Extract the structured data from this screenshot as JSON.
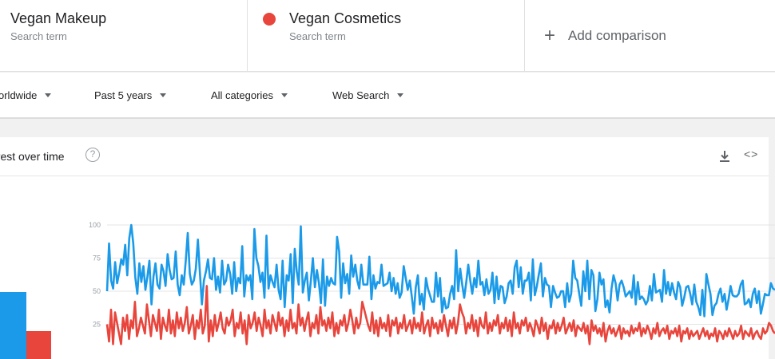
{
  "search_terms": [
    {
      "title": "Vegan Makeup",
      "subtitle": "Search term",
      "color": "#1a9ae8"
    },
    {
      "title": "Vegan Cosmetics",
      "subtitle": "Search term",
      "color": "#e8453c"
    }
  ],
  "add_comparison": {
    "icon": "plus-icon",
    "label": "Add comparison"
  },
  "filters": [
    {
      "label": "orldwide"
    },
    {
      "label": "Past 5 years"
    },
    {
      "label": "All categories"
    },
    {
      "label": "Web Search"
    }
  ],
  "card": {
    "title": "erest over time",
    "help_glyph": "?",
    "download_icon": "download-icon",
    "embed_icon": "embed-code-icon",
    "embed_glyph": "<>"
  },
  "averages": [
    {
      "name": "Vegan Makeup",
      "value": 55,
      "color": "#1a9ae8"
    },
    {
      "name": "Vegan Cosmetics",
      "value": 23,
      "color": "#e8453c"
    }
  ],
  "chart_data": {
    "type": "line",
    "ylim": [
      0,
      100
    ],
    "yticks": [
      "100",
      "75",
      "50",
      "25"
    ],
    "grid": true,
    "series": [
      {
        "name": "Vegan Makeup",
        "color": "#1a9ae8",
        "values": [
          50,
          86,
          58,
          52,
          72,
          56,
          64,
          74,
          70,
          85,
          62,
          90,
          100,
          86,
          60,
          48,
          71,
          57,
          69,
          51,
          61,
          73,
          40,
          61,
          71,
          55,
          52,
          70,
          65,
          54,
          78,
          66,
          59,
          60,
          80,
          55,
          47,
          62,
          55,
          73,
          94,
          63,
          55,
          58,
          67,
          89,
          64,
          40,
          58,
          65,
          74,
          60,
          59,
          75,
          51,
          61,
          49,
          73,
          55,
          58,
          70,
          63,
          48,
          72,
          50,
          60,
          56,
          84,
          46,
          62,
          58,
          62,
          44,
          97,
          75,
          69,
          57,
          64,
          45,
          92,
          52,
          62,
          57,
          53,
          70,
          51,
          44,
          73,
          38,
          62,
          58,
          78,
          41,
          82,
          65,
          55,
          99,
          49,
          58,
          64,
          43,
          58,
          75,
          53,
          66,
          56,
          41,
          74,
          39,
          61,
          54,
          60,
          56,
          55,
          91,
          80,
          45,
          71,
          56,
          63,
          48,
          77,
          61,
          70,
          58,
          52,
          70,
          55,
          55,
          55,
          76,
          44,
          62,
          52,
          57,
          56,
          70,
          54,
          55,
          56,
          64,
          50,
          60,
          48,
          56,
          45,
          49,
          69,
          60,
          51,
          58,
          46,
          33,
          53,
          62,
          40,
          48,
          36,
          60,
          52,
          47,
          42,
          42,
          64,
          46,
          60,
          34,
          45,
          37,
          38,
          48,
          54,
          44,
          81,
          50,
          67,
          55,
          45,
          57,
          70,
          58,
          48,
          60,
          53,
          73,
          55,
          57,
          47,
          59,
          48,
          51,
          64,
          41,
          61,
          44,
          54,
          53,
          41,
          46,
          56,
          58,
          48,
          68,
          73,
          53,
          68,
          48,
          58,
          58,
          64,
          43,
          74,
          47,
          54,
          63,
          71,
          46,
          60,
          55,
          54,
          38,
          54,
          49,
          45,
          46,
          50,
          50,
          38,
          56,
          42,
          48,
          73,
          60,
          58,
          48,
          39,
          65,
          50,
          73,
          44,
          66,
          62,
          35,
          44,
          64,
          55,
          59,
          38,
          43,
          34,
          52,
          62,
          56,
          43,
          55,
          58,
          53,
          46,
          48,
          50,
          45,
          62,
          40,
          57,
          44,
          46,
          44,
          40,
          43,
          54,
          43,
          63,
          49,
          50,
          51,
          42,
          66,
          48,
          57,
          47,
          56,
          49,
          44,
          57,
          53,
          39,
          45,
          53,
          54,
          48,
          40,
          55,
          42,
          38,
          32,
          51,
          31,
          63,
          55,
          48,
          32,
          39,
          41,
          48,
          52,
          42,
          48,
          36,
          44,
          54,
          47,
          46,
          46,
          48,
          55,
          58,
          40,
          41,
          44,
          38,
          48,
          52,
          41,
          50,
          33,
          40,
          48,
          47,
          47,
          56,
          52,
          51
        ]
      },
      {
        "name": "Vegan Cosmetics",
        "color": "#e8453c",
        "values": [
          25,
          12,
          36,
          10,
          34,
          26,
          18,
          10,
          30,
          20,
          32,
          14,
          28,
          22,
          42,
          16,
          22,
          30,
          24,
          18,
          40,
          28,
          16,
          32,
          26,
          20,
          36,
          14,
          30,
          24,
          20,
          36,
          18,
          28,
          16,
          34,
          22,
          30,
          20,
          26,
          38,
          18,
          24,
          32,
          14,
          28,
          22,
          36,
          18,
          24,
          54,
          12,
          28,
          16,
          32,
          20,
          26,
          34,
          22,
          18,
          30,
          24,
          28,
          36,
          16,
          26,
          22,
          34,
          18,
          28,
          10,
          32,
          22,
          26,
          34,
          20,
          30,
          24,
          16,
          36,
          22,
          28,
          18,
          32,
          26,
          20,
          34,
          24,
          30,
          16,
          28,
          20,
          36,
          22,
          26,
          18,
          40,
          24,
          30,
          20,
          28,
          34,
          16,
          26,
          22,
          32,
          18,
          38,
          24,
          28,
          20,
          30,
          22,
          34,
          16,
          26,
          18,
          28,
          24,
          32,
          20,
          26,
          36,
          28,
          18,
          30,
          22,
          26,
          42,
          36,
          30,
          24,
          20,
          34,
          18,
          28,
          16,
          30,
          22,
          26,
          20,
          32,
          16,
          28,
          24,
          30,
          18,
          26,
          22,
          32,
          20,
          24,
          28,
          18,
          30,
          22,
          26,
          20,
          34,
          18,
          24,
          28,
          16,
          30,
          22,
          26,
          18,
          28,
          20,
          32,
          24,
          16,
          28,
          22,
          30,
          18,
          26,
          40,
          34,
          30,
          18,
          26,
          22,
          32,
          20,
          28,
          16,
          30,
          24,
          22,
          34,
          18,
          26,
          20,
          28,
          24,
          32,
          18,
          26,
          22,
          30,
          20,
          28,
          16,
          34,
          22,
          26,
          18,
          28,
          24,
          30,
          20,
          26,
          22,
          16,
          28,
          24,
          18,
          30,
          20,
          26,
          14,
          24,
          22,
          28,
          18,
          26,
          20,
          24,
          30,
          18,
          22,
          26,
          20,
          28,
          16,
          24,
          22,
          20,
          26,
          18,
          24,
          10,
          28,
          20,
          24,
          18,
          22,
          16,
          26,
          12,
          20,
          24,
          18,
          22,
          16,
          20,
          24,
          14,
          22,
          18,
          20,
          16,
          24,
          18,
          22,
          20,
          26,
          16,
          22,
          18,
          24,
          20,
          14,
          22,
          18,
          26,
          16,
          20,
          22,
          18,
          24,
          14,
          20,
          18,
          22,
          16,
          24,
          12,
          20,
          18,
          22,
          14,
          20,
          16,
          18,
          20,
          14,
          18,
          22,
          16,
          20,
          14,
          18,
          16,
          22,
          12,
          20,
          18,
          14,
          20,
          16,
          22,
          18,
          14,
          20,
          16,
          18,
          24,
          14,
          20,
          18,
          16,
          22,
          14,
          18,
          20,
          16,
          14,
          22,
          18,
          20,
          26,
          24,
          20,
          18
        ]
      }
    ]
  }
}
